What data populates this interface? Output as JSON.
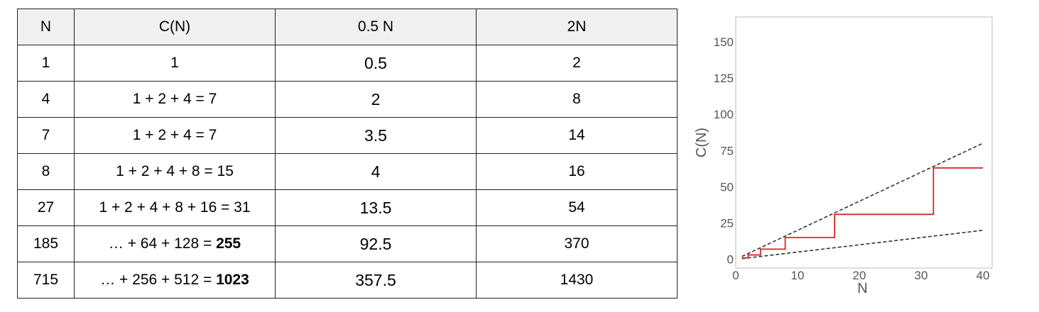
{
  "table": {
    "headers": [
      "N",
      "C(N)",
      "0.5 N",
      "2N"
    ],
    "rows": [
      {
        "n": "1",
        "c_pre": "1",
        "c_bold": "",
        "half": "0.5",
        "double": "2"
      },
      {
        "n": "4",
        "c_pre": "1 + 2 + 4 = 7",
        "c_bold": "",
        "half": "2",
        "double": "8"
      },
      {
        "n": "7",
        "c_pre": "1 + 2 + 4 = 7",
        "c_bold": "",
        "half": "3.5",
        "double": "14"
      },
      {
        "n": "8",
        "c_pre": "1 + 2 + 4 + 8 = 15",
        "c_bold": "",
        "half": "4",
        "double": "16"
      },
      {
        "n": "27",
        "c_pre": "1 + 2 + 4 + 8 + 16 = 31",
        "c_bold": "",
        "half": "13.5",
        "double": "54"
      },
      {
        "n": "185",
        "c_pre": "… + 64 + 128 = ",
        "c_bold": "255",
        "half": "92.5",
        "double": "370"
      },
      {
        "n": "715",
        "c_pre": "… + 256 + 512 = ",
        "c_bold": "1023",
        "half": "357.5",
        "double": "1430"
      }
    ]
  },
  "chart_data": {
    "type": "line",
    "xlabel": "N",
    "ylabel": "C(N)",
    "xlim": [
      0,
      41.5
    ],
    "ylim": [
      -6,
      167
    ],
    "xticks": [
      0,
      10,
      20,
      30,
      40
    ],
    "yticks": [
      0,
      25,
      50,
      75,
      100,
      125,
      150
    ],
    "grid": false,
    "colors": {
      "step": "#d62728",
      "bounds": "#333333",
      "frame": "#bbbbbb",
      "ticks": "#555555"
    },
    "series": [
      {
        "style": "solid-step",
        "x": [
          1,
          2,
          4,
          8,
          16,
          32,
          40
        ],
        "y": [
          1,
          3,
          7,
          15,
          31,
          63,
          63
        ]
      },
      {
        "style": "dashed",
        "x": [
          1,
          40
        ],
        "y": [
          2,
          80
        ]
      },
      {
        "style": "dashed",
        "x": [
          1,
          40
        ],
        "y": [
          0.5,
          20
        ]
      }
    ]
  }
}
